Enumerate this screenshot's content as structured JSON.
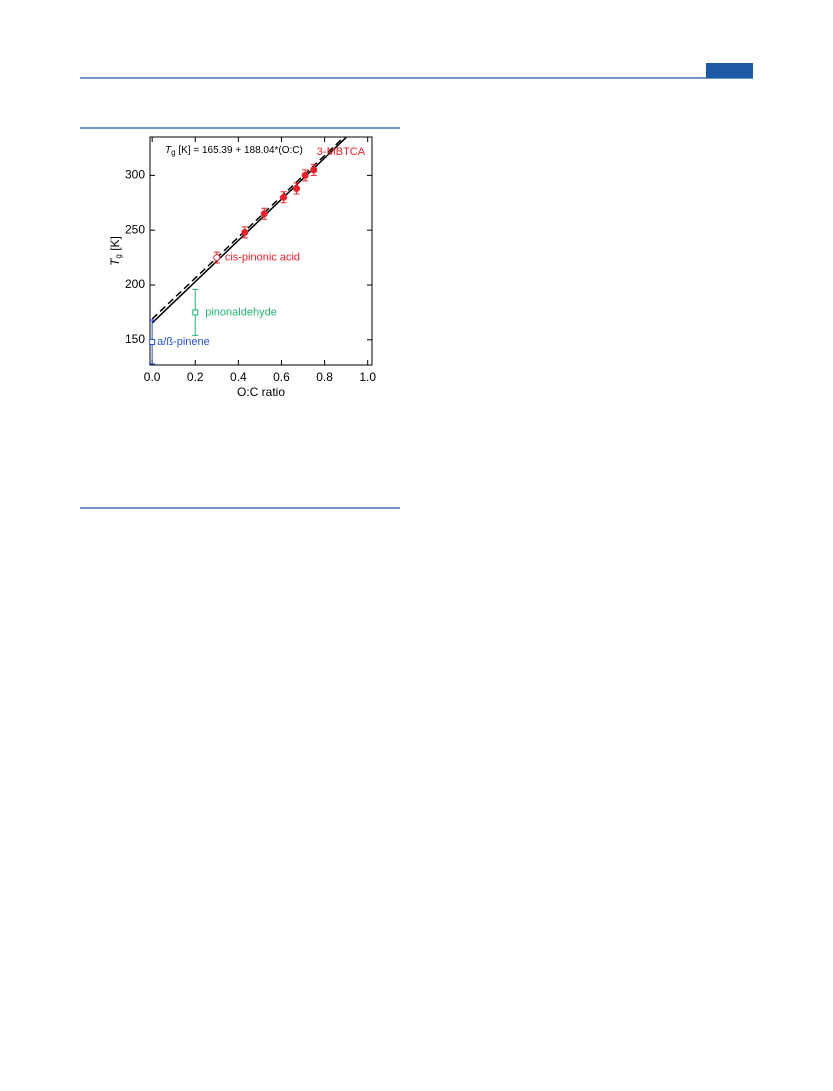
{
  "chart_data": {
    "type": "scatter",
    "annotation": {
      "symbol": "T",
      "subscript": "g",
      "text": " [K] = 165.39 + 188.04*(O:C)"
    },
    "x_label": "O:C ratio",
    "y_label": {
      "symbol": "T",
      "subscript": "g",
      "text": " [K]"
    },
    "xlim": [
      -0.01,
      1.02
    ],
    "ylim": [
      127,
      335
    ],
    "xticks": [
      {
        "value": 0,
        "label": "0.0"
      },
      0.2,
      0.4,
      0.6,
      0.8,
      {
        "value": 1,
        "label": "1.0"
      }
    ],
    "yticks": [
      150,
      200,
      250,
      300
    ],
    "series": [
      {
        "name": "a/ß-pinene",
        "color": "#2a52d6",
        "marker": "square-open",
        "x": [
          0
        ],
        "values": [
          148
        ],
        "errors": [
          20
        ]
      },
      {
        "name": "pinonaldehyde",
        "color": "#22b573",
        "marker": "square-open",
        "x": [
          0.2
        ],
        "values": [
          175
        ],
        "errors": [
          21
        ]
      },
      {
        "name": "cis-pinonic acid",
        "color": "#e8212a",
        "marker": "circle-open",
        "x": [
          0.3
        ],
        "values": [
          225
        ],
        "errors": [
          5
        ]
      },
      {
        "name": "3-MBTCA",
        "color": "#e8212a",
        "marker": "circle",
        "x": [
          0.43,
          0.52,
          0.61,
          0.67,
          0.71,
          0.75
        ],
        "values": [
          248,
          265,
          280,
          288,
          300,
          305
        ],
        "errors": [
          5,
          5,
          5,
          5,
          5,
          5
        ]
      }
    ],
    "fit_lines": [
      {
        "style": "solid",
        "color": "#000000",
        "x": [
          0,
          0.9
        ],
        "values": [
          165.39,
          334.6
        ]
      },
      {
        "style": "dashed",
        "color": "#000000",
        "x": [
          0,
          0.88
        ],
        "values": [
          169,
          333
        ]
      }
    ]
  }
}
